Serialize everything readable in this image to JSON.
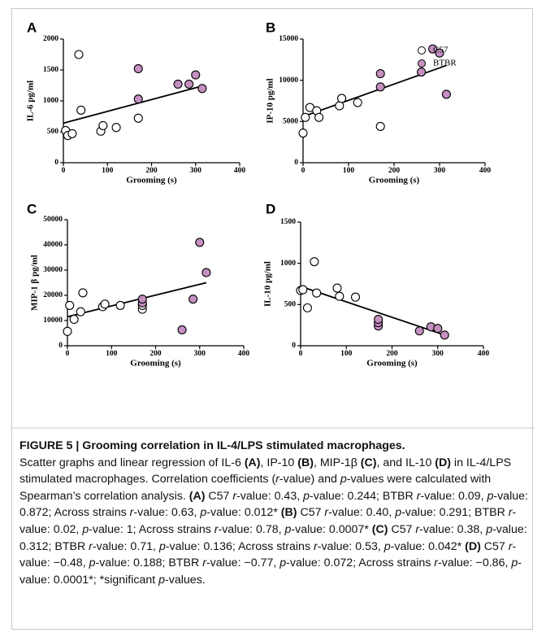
{
  "chart_data": [
    {
      "type": "scatter",
      "panel": "A",
      "ylabel": "IL-6 pg/ml",
      "xlabel": "Grooming (s)",
      "xlim": [
        0,
        400
      ],
      "xticks": [
        0,
        100,
        200,
        300,
        400
      ],
      "ylim": [
        0,
        2000
      ],
      "yticks": [
        0,
        500,
        1000,
        1500,
        2000
      ],
      "series": [
        {
          "color": "#ffffff",
          "x": [
            5,
            10,
            20,
            35,
            40,
            85,
            90,
            120,
            170
          ],
          "values": [
            520,
            440,
            470,
            1750,
            850,
            510,
            600,
            570,
            720
          ]
        },
        {
          "color": "#c58fc0",
          "x": [
            170,
            170,
            260,
            285,
            300,
            315
          ],
          "values": [
            1520,
            1030,
            1270,
            1270,
            1420,
            1200
          ]
        }
      ],
      "trend": {
        "x": [
          0,
          315
        ],
        "values": [
          640,
          1240
        ]
      }
    },
    {
      "type": "scatter",
      "panel": "B",
      "ylabel": "IP-10 pg/ml",
      "xlabel": "Grooming (s)",
      "xlim": [
        0,
        400
      ],
      "xticks": [
        0,
        100,
        200,
        300,
        400
      ],
      "ylim": [
        0,
        15000
      ],
      "yticks": [
        0,
        5000,
        10000,
        15000
      ],
      "legend": "upper right",
      "series": [
        {
          "name": "C57",
          "color": "#ffffff",
          "x": [
            0,
            5,
            15,
            30,
            35,
            80,
            85,
            120,
            170
          ],
          "values": [
            3600,
            5500,
            6700,
            6300,
            5500,
            6900,
            7800,
            7300,
            4400
          ]
        },
        {
          "name": "BTBR",
          "color": "#c58fc0",
          "x": [
            170,
            170,
            260,
            285,
            300,
            315
          ],
          "values": [
            9200,
            10800,
            11000,
            13800,
            13300,
            8300
          ]
        }
      ],
      "trend": {
        "x": [
          0,
          315
        ],
        "values": [
          5600,
          11800
        ]
      }
    },
    {
      "type": "scatter",
      "panel": "C",
      "ylabel": "MIP-1 β pg/ml",
      "xlabel": "Grooming (s)",
      "xlim": [
        0,
        400
      ],
      "xticks": [
        0,
        100,
        200,
        300,
        400
      ],
      "ylim": [
        0,
        50000
      ],
      "yticks": [
        0,
        10000,
        20000,
        30000,
        40000,
        50000
      ],
      "series": [
        {
          "color": "#ffffff",
          "x": [
            0,
            5,
            15,
            30,
            35,
            80,
            85,
            120,
            170,
            170
          ],
          "values": [
            5700,
            16000,
            10500,
            13500,
            21000,
            15500,
            16500,
            16000,
            14500,
            16000
          ]
        },
        {
          "color": "#c58fc0",
          "x": [
            170,
            170,
            260,
            285,
            300,
            315
          ],
          "values": [
            17000,
            18500,
            6300,
            18500,
            41000,
            29000
          ]
        }
      ],
      "trend": {
        "x": [
          0,
          315
        ],
        "values": [
          11500,
          25000
        ]
      }
    },
    {
      "type": "scatter",
      "panel": "D",
      "ylabel": "IL-10 pg/ml",
      "xlabel": "Grooming (s)",
      "xlim": [
        0,
        400
      ],
      "xticks": [
        0,
        100,
        200,
        300,
        400
      ],
      "ylim": [
        0,
        1500
      ],
      "yticks": [
        0,
        500,
        1000,
        1500
      ],
      "series": [
        {
          "color": "#ffffff",
          "x": [
            0,
            5,
            15,
            30,
            35,
            80,
            85,
            120
          ],
          "values": [
            670,
            680,
            460,
            1020,
            640,
            700,
            600,
            590
          ]
        },
        {
          "color": "#c58fc0",
          "x": [
            170,
            170,
            170,
            260,
            285,
            300,
            315
          ],
          "values": [
            240,
            280,
            320,
            180,
            230,
            210,
            130
          ]
        }
      ],
      "trend": {
        "x": [
          0,
          315
        ],
        "values": [
          720,
          130
        ]
      }
    }
  ],
  "caption": {
    "title": "FIGURE 5 | Grooming correlation in IL-4/LPS stimulated macrophages.",
    "runs": [
      "Scatter graphs and linear regression of IL-6 ",
      {
        "text": "(A)",
        "style": "bold"
      },
      ", IP-10 ",
      {
        "text": "(B)",
        "style": "bold"
      },
      ", MIP-1β ",
      {
        "text": "(C)",
        "style": "bold"
      },
      ", and IL-10 ",
      {
        "text": "(D)",
        "style": "bold"
      },
      " in IL-4/LPS stimulated macrophages. Correlation coefficients (",
      {
        "text": "r",
        "style": "italic"
      },
      "-value) and ",
      {
        "text": "p",
        "style": "italic"
      },
      "-values were calculated with Spearman’s correlation analysis. ",
      {
        "text": "(A)",
        "style": "bold"
      },
      " C57 ",
      {
        "text": "r",
        "style": "italic"
      },
      "-value: 0.43, ",
      {
        "text": "p",
        "style": "italic"
      },
      "-value: 0.244; BTBR ",
      {
        "text": "r",
        "style": "italic"
      },
      "-value: 0.09, ",
      {
        "text": "p",
        "style": "italic"
      },
      "-value: 0.872; Across strains ",
      {
        "text": "r",
        "style": "italic"
      },
      "-value: 0.63, ",
      {
        "text": "p",
        "style": "italic"
      },
      "-value: 0.012* ",
      {
        "text": "(B)",
        "style": "bold"
      },
      " C57 ",
      {
        "text": "r",
        "style": "italic"
      },
      "-value: 0.40, ",
      {
        "text": "p",
        "style": "italic"
      },
      "-value: 0.291; BTBR ",
      {
        "text": "r",
        "style": "italic"
      },
      "-value: 0.02, ",
      {
        "text": "p",
        "style": "italic"
      },
      "-value: 1; Across strains ",
      {
        "text": "r",
        "style": "italic"
      },
      "-value: 0.78, ",
      {
        "text": "p",
        "style": "italic"
      },
      "-value: 0.0007* ",
      {
        "text": "(C)",
        "style": "bold"
      },
      " C57 ",
      {
        "text": "r",
        "style": "italic"
      },
      "-value: 0.38, ",
      {
        "text": "p",
        "style": "italic"
      },
      "-value: 0.312; BTBR ",
      {
        "text": "r",
        "style": "italic"
      },
      "-value: 0.71, ",
      {
        "text": "p",
        "style": "italic"
      },
      "-value: 0.136; Across strains ",
      {
        "text": "r",
        "style": "italic"
      },
      "-value: 0.53, ",
      {
        "text": "p",
        "style": "italic"
      },
      "-value: 0.042* ",
      {
        "text": "(D)",
        "style": "bold"
      },
      " C57 ",
      {
        "text": "r",
        "style": "italic"
      },
      "-value: −0.48, ",
      {
        "text": "p",
        "style": "italic"
      },
      "-value: 0.188; BTBR ",
      {
        "text": "r",
        "style": "italic"
      },
      "-value: −0.77, ",
      {
        "text": "p",
        "style": "italic"
      },
      "-value: 0.072; Across strains ",
      {
        "text": "r",
        "style": "italic"
      },
      "-value: −0.86, ",
      {
        "text": "p",
        "style": "italic"
      },
      "-value: 0.0001*; *significant ",
      {
        "text": "p",
        "style": "italic"
      },
      "-values."
    ]
  }
}
